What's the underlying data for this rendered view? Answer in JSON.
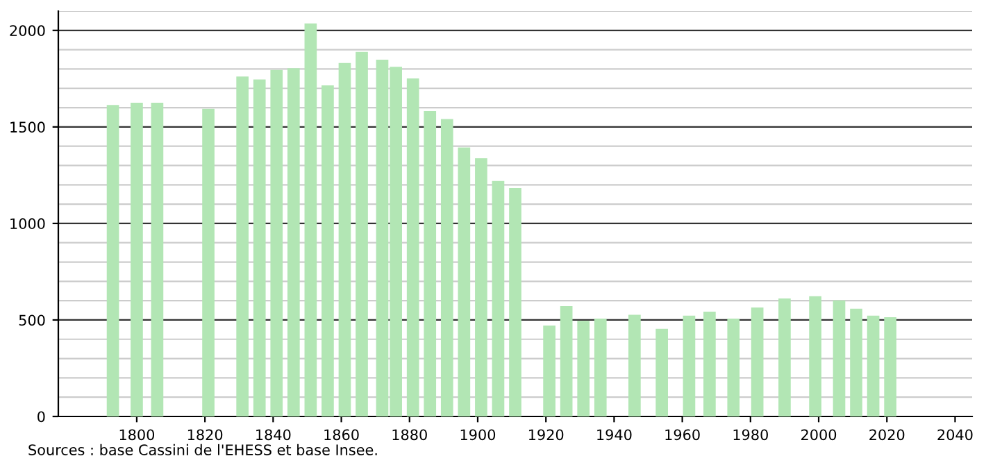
{
  "chart_data": {
    "type": "bar",
    "color": "#b2e6b4",
    "x": [
      1793,
      1800,
      1806,
      1821,
      1831,
      1836,
      1841,
      1846,
      1851,
      1856,
      1861,
      1866,
      1872,
      1876,
      1881,
      1886,
      1891,
      1896,
      1901,
      1906,
      1911,
      1921,
      1926,
      1931,
      1936,
      1946,
      1954,
      1962,
      1968,
      1975,
      1982,
      1990,
      1999,
      2006,
      2011,
      2016,
      2021
    ],
    "values": [
      1614,
      1625,
      1625,
      1594,
      1761,
      1746,
      1795,
      1804,
      2036,
      1715,
      1831,
      1889,
      1848,
      1811,
      1751,
      1582,
      1541,
      1393,
      1338,
      1220,
      1183,
      471,
      572,
      495,
      507,
      527,
      454,
      522,
      543,
      507,
      565,
      611,
      623,
      601,
      558,
      522,
      514
    ],
    "xlim": [
      1777,
      2045
    ],
    "xticks": [
      1800,
      1820,
      1840,
      1860,
      1880,
      1900,
      1920,
      1940,
      1960,
      1980,
      2000,
      2020,
      2040
    ],
    "ylim": [
      0,
      2100
    ],
    "yticks": [
      0,
      500,
      1000,
      1500,
      2000
    ],
    "grid": "y",
    "annotations": [
      "Sources : base Cassini de l'EHESS et base Insee."
    ]
  }
}
